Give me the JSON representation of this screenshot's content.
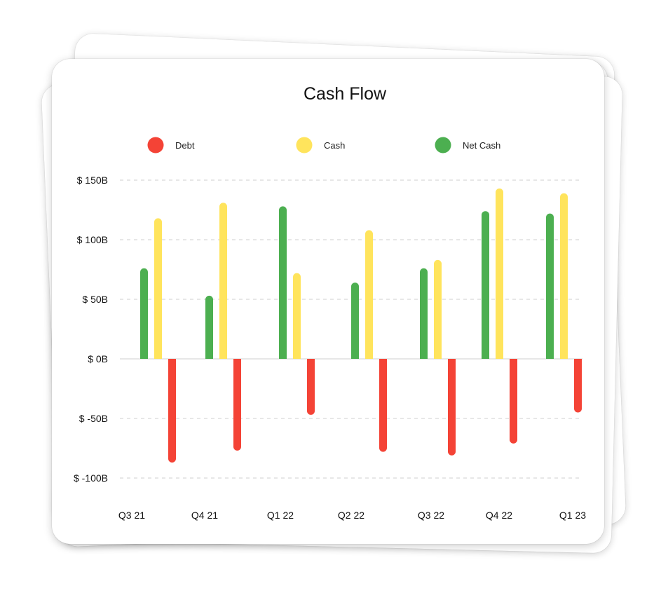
{
  "chart_data": {
    "type": "bar",
    "title": "Cash Flow",
    "xlabel": "",
    "ylabel": "",
    "categories": [
      "Q3 21",
      "Q4 21",
      "Q1 22",
      "Q2 22",
      "Q3 22",
      "Q4 22",
      "Q1 23"
    ],
    "series": [
      {
        "name": "Net Cash",
        "color": "#4caf50",
        "values": [
          76,
          53,
          128,
          64,
          76,
          124,
          122
        ]
      },
      {
        "name": "Cash",
        "color": "#ffe45c",
        "values": [
          118,
          131,
          72,
          108,
          83,
          143,
          139
        ]
      },
      {
        "name": "Debt",
        "color": "#f44336",
        "values": [
          -87,
          -77,
          -47,
          -78,
          -81,
          -71,
          -45
        ]
      }
    ],
    "legend": [
      {
        "label": "Debt",
        "color": "#f44336"
      },
      {
        "label": "Cash",
        "color": "#ffe45c"
      },
      {
        "label": "Net Cash",
        "color": "#4caf50"
      }
    ],
    "legend_position": "top",
    "y_ticks": [
      {
        "value": 150,
        "label": "$ 150B"
      },
      {
        "value": 100,
        "label": "$ 100B"
      },
      {
        "value": 50,
        "label": "$ 50B"
      },
      {
        "value": 0,
        "label": "$ 0B"
      },
      {
        "value": -50,
        "label": "$ -50B"
      },
      {
        "value": -100,
        "label": "$ -100B"
      }
    ],
    "ylim": [
      -100,
      150
    ],
    "grid": true
  }
}
